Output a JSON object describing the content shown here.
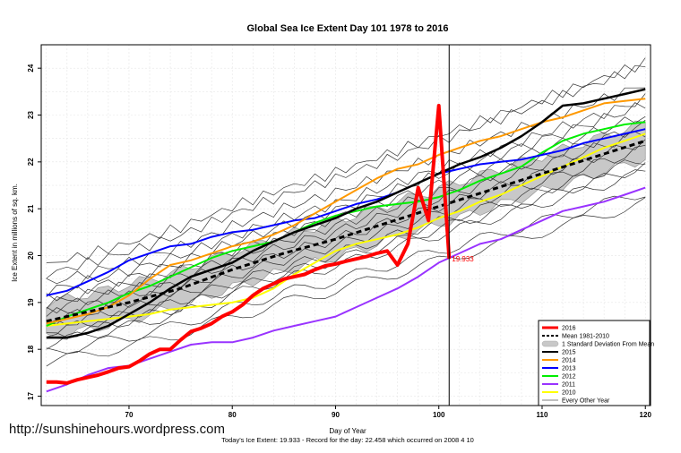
{
  "chart_data": {
    "type": "line",
    "title": "Global Sea Ice Extent Day 101 1978 to 2016",
    "xlabel": "Day of Year",
    "ylabel": "Ice Extent in millions of sq. km.",
    "xlim": [
      61.5,
      120.5
    ],
    "ylim": [
      16.8,
      24.5
    ],
    "xticks": [
      70,
      80,
      90,
      100,
      110,
      120
    ],
    "yticks": [
      17,
      18,
      19,
      20,
      21,
      22,
      23,
      24
    ],
    "grid": true,
    "legend_position": "bottom-right",
    "current_day": 101,
    "annotation": "19.933",
    "footer": "Today's Ice Extent: 19.933  - Record for the day: 22.458 which occurred on 2008 4 10",
    "watermark": "http://sunshinehours.wordpress.com",
    "legend": [
      {
        "label": "2016",
        "color": "#ff0000",
        "style": "thick"
      },
      {
        "label": "Mean 1981-2010",
        "color": "#000000",
        "style": "dashed"
      },
      {
        "label": "1 Standard Deviation From Mean",
        "color": "#c8c8c8",
        "style": "band"
      },
      {
        "label": "2015",
        "color": "#000000",
        "style": "solid"
      },
      {
        "label": "2014",
        "color": "#ff9900",
        "style": "solid"
      },
      {
        "label": "2013",
        "color": "#0000ff",
        "style": "solid"
      },
      {
        "label": "2012",
        "color": "#00ee00",
        "style": "solid"
      },
      {
        "label": "2011",
        "color": "#9933ff",
        "style": "solid"
      },
      {
        "label": "2010",
        "color": "#ffff00",
        "style": "solid"
      },
      {
        "label": "Every Other Year",
        "color": "#555555",
        "style": "thin"
      }
    ],
    "series": [
      {
        "name": "2016",
        "color": "#ff0000",
        "width": 4,
        "x": [
          62,
          63,
          64,
          65,
          66,
          67,
          68,
          69,
          70,
          71,
          72,
          73,
          74,
          75,
          76,
          77,
          78,
          79,
          80,
          81,
          82,
          83,
          84,
          85,
          86,
          87,
          88,
          89,
          90,
          91,
          92,
          93,
          94,
          95,
          96,
          97,
          98,
          99,
          100,
          101
        ],
        "y": [
          17.3,
          17.3,
          17.28,
          17.35,
          17.4,
          17.45,
          17.52,
          17.6,
          17.63,
          17.75,
          17.9,
          18.0,
          18.0,
          18.2,
          18.38,
          18.45,
          18.55,
          18.7,
          18.8,
          18.95,
          19.15,
          19.3,
          19.4,
          19.5,
          19.55,
          19.6,
          19.7,
          19.78,
          19.82,
          19.88,
          19.93,
          19.98,
          20.05,
          20.1,
          19.8,
          20.25,
          21.45,
          20.75,
          23.2,
          19.933
        ]
      },
      {
        "name": "Mean 1981-2010",
        "color": "#000000",
        "width": 3,
        "dash": "6,4",
        "x": [
          62,
          65,
          70,
          75,
          80,
          85,
          90,
          95,
          100,
          105,
          110,
          115,
          120
        ],
        "y": [
          18.6,
          18.75,
          19.0,
          19.3,
          19.7,
          20.05,
          20.35,
          20.7,
          21.05,
          21.4,
          21.75,
          22.1,
          22.45
        ]
      },
      {
        "name": "2015",
        "color": "#000000",
        "width": 2.5,
        "x": [
          62,
          64,
          66,
          68,
          70,
          72,
          74,
          76,
          78,
          80,
          82,
          84,
          86,
          88,
          90,
          92,
          94,
          96,
          98,
          100,
          102,
          104,
          106,
          108,
          110,
          112,
          114,
          116,
          118,
          120
        ],
        "y": [
          18.25,
          18.25,
          18.35,
          18.5,
          18.75,
          19.0,
          19.3,
          19.55,
          19.7,
          19.85,
          20.1,
          20.3,
          20.5,
          20.65,
          20.8,
          21.0,
          21.15,
          21.35,
          21.55,
          21.75,
          21.95,
          22.1,
          22.3,
          22.55,
          22.85,
          23.2,
          23.25,
          23.35,
          23.45,
          23.55
        ]
      },
      {
        "name": "2014",
        "color": "#ff9900",
        "width": 2,
        "x": [
          62,
          64,
          66,
          68,
          70,
          72,
          74,
          76,
          78,
          80,
          82,
          84,
          86,
          88,
          90,
          92,
          94,
          96,
          98,
          100,
          102,
          104,
          106,
          108,
          110,
          112,
          114,
          116,
          118,
          120
        ],
        "y": [
          18.55,
          18.65,
          18.75,
          18.9,
          19.15,
          19.5,
          19.8,
          19.9,
          20.05,
          20.2,
          20.3,
          20.45,
          20.65,
          20.9,
          21.15,
          21.4,
          21.65,
          21.85,
          21.95,
          22.15,
          22.3,
          22.45,
          22.55,
          22.7,
          22.85,
          22.95,
          23.1,
          23.25,
          23.3,
          23.35
        ]
      },
      {
        "name": "2013",
        "color": "#0000ff",
        "width": 2,
        "x": [
          62,
          64,
          66,
          68,
          70,
          72,
          74,
          76,
          78,
          80,
          82,
          84,
          86,
          88,
          90,
          92,
          94,
          96,
          98,
          100,
          102,
          104,
          106,
          108,
          110,
          112,
          114,
          116,
          118,
          120
        ],
        "y": [
          19.15,
          19.25,
          19.45,
          19.65,
          19.9,
          20.05,
          20.2,
          20.25,
          20.4,
          20.5,
          20.55,
          20.65,
          20.75,
          20.8,
          20.95,
          21.1,
          21.2,
          21.35,
          21.55,
          21.75,
          21.85,
          21.95,
          22.0,
          22.05,
          22.15,
          22.25,
          22.4,
          22.5,
          22.6,
          22.7
        ]
      },
      {
        "name": "2012",
        "color": "#00ee00",
        "width": 2,
        "x": [
          62,
          64,
          66,
          68,
          70,
          72,
          74,
          76,
          78,
          80,
          82,
          84,
          86,
          88,
          90,
          92,
          94,
          96,
          98,
          100,
          102,
          104,
          106,
          108,
          110,
          112,
          114,
          116,
          118,
          120
        ],
        "y": [
          18.5,
          18.7,
          18.85,
          19.0,
          19.2,
          19.35,
          19.55,
          19.75,
          19.95,
          20.1,
          20.2,
          20.3,
          20.5,
          20.7,
          20.85,
          20.95,
          21.05,
          21.1,
          21.15,
          21.25,
          21.4,
          21.6,
          21.75,
          21.9,
          22.2,
          22.45,
          22.6,
          22.7,
          22.8,
          22.85
        ]
      },
      {
        "name": "2011",
        "color": "#9933ff",
        "width": 2,
        "x": [
          62,
          64,
          66,
          68,
          70,
          72,
          74,
          76,
          78,
          80,
          82,
          84,
          86,
          88,
          90,
          92,
          94,
          96,
          98,
          100,
          102,
          104,
          106,
          108,
          110,
          112,
          114,
          116,
          118,
          120
        ],
        "y": [
          17.1,
          17.25,
          17.45,
          17.6,
          17.65,
          17.8,
          17.95,
          18.1,
          18.15,
          18.15,
          18.25,
          18.4,
          18.5,
          18.6,
          18.7,
          18.9,
          19.1,
          19.3,
          19.55,
          19.85,
          20.05,
          20.25,
          20.35,
          20.55,
          20.75,
          20.95,
          21.05,
          21.15,
          21.3,
          21.45
        ]
      },
      {
        "name": "2010",
        "color": "#ffff00",
        "width": 2,
        "x": [
          62,
          64,
          66,
          68,
          70,
          72,
          74,
          76,
          78,
          80,
          82,
          84,
          86,
          88,
          90,
          92,
          94,
          96,
          98,
          100,
          102,
          104,
          106,
          108,
          110,
          112,
          114,
          116,
          118,
          120
        ],
        "y": [
          18.5,
          18.55,
          18.6,
          18.65,
          18.7,
          18.75,
          18.85,
          18.9,
          18.95,
          19.0,
          19.1,
          19.3,
          19.6,
          19.85,
          20.1,
          20.25,
          20.35,
          20.45,
          20.6,
          20.8,
          20.95,
          21.15,
          21.3,
          21.5,
          21.7,
          21.9,
          22.1,
          22.3,
          22.45,
          22.6
        ]
      }
    ]
  }
}
